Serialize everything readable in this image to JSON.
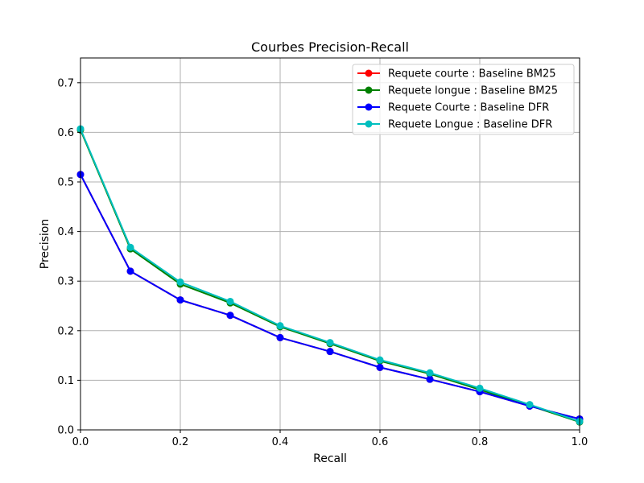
{
  "chart_data": {
    "type": "line",
    "title": "Courbes Precision-Recall",
    "xlabel": "Recall",
    "ylabel": "Precision",
    "xlim": [
      0,
      1
    ],
    "ylim": [
      0,
      0.75
    ],
    "xticks": [
      0,
      0.2,
      0.4,
      0.6,
      0.8,
      1.0
    ],
    "xtick_labels": [
      "0.0",
      "0.2",
      "0.4",
      "0.6",
      "0.8",
      "1.0"
    ],
    "yticks": [
      0,
      0.1,
      0.2,
      0.3,
      0.4,
      0.5,
      0.6,
      0.7
    ],
    "ytick_labels": [
      "0.0",
      "0.1",
      "0.2",
      "0.3",
      "0.4",
      "0.5",
      "0.6",
      "0.7"
    ],
    "grid": true,
    "legend_position": "top-right",
    "x": [
      0.0,
      0.1,
      0.2,
      0.3,
      0.4,
      0.5,
      0.6,
      0.7,
      0.8,
      0.9,
      1.0
    ],
    "series": [
      {
        "name": "Requete courte : Baseline BM25",
        "color": "#ff0000",
        "values": [
          0.515,
          0.32,
          0.262,
          0.231,
          0.186,
          0.158,
          0.126,
          0.102,
          0.077,
          0.048,
          0.022
        ]
      },
      {
        "name": "Requete longue : Baseline BM25",
        "color": "#008000",
        "values": [
          0.605,
          0.365,
          0.294,
          0.256,
          0.208,
          0.174,
          0.139,
          0.113,
          0.081,
          0.049,
          0.016
        ]
      },
      {
        "name": "Requete Courte : Baseline DFR",
        "color": "#0000ff",
        "values": [
          0.515,
          0.32,
          0.262,
          0.231,
          0.186,
          0.158,
          0.126,
          0.102,
          0.077,
          0.048,
          0.022
        ]
      },
      {
        "name": "Requete Longue : Baseline DFR",
        "color": "#00bfbf",
        "values": [
          0.607,
          0.368,
          0.298,
          0.259,
          0.21,
          0.176,
          0.141,
          0.115,
          0.084,
          0.051,
          0.017
        ]
      }
    ]
  }
}
